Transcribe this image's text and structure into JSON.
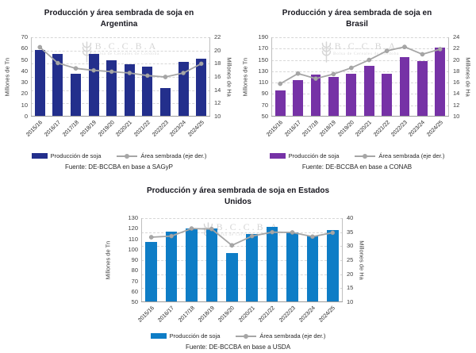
{
  "watermark": {
    "abbr": "B.C.C.B.A",
    "sub": "Bolsa de Cereales de Córdoba"
  },
  "line_color": "#A6A6A6",
  "chart_data": [
    {
      "id": "argentina",
      "type": "bar",
      "title": "Producción y área sembrada de soja en\nArgentina",
      "categories": [
        "2015/16",
        "2016/17",
        "2017/18",
        "2018/19",
        "2019/20",
        "2020/21",
        "2021/22",
        "2022/23",
        "2023/24",
        "2024/25"
      ],
      "series": [
        {
          "name": "Producción de soja",
          "type": "bar",
          "axis": "left",
          "color": "#232F8C",
          "values": [
            59,
            55,
            37.8,
            55.3,
            49.5,
            46.3,
            43.9,
            25,
            48.3,
            51
          ]
        },
        {
          "name": "Área sembrada (eje der.)",
          "type": "line",
          "axis": "right",
          "color": "#A6A6A6",
          "values": [
            20.5,
            18.1,
            17.3,
            17.0,
            16.8,
            16.6,
            16.2,
            16.0,
            16.6,
            18.0
          ]
        }
      ],
      "left_axis": {
        "title": "Millones de Tn",
        "min": 0,
        "max": 70,
        "step": 10
      },
      "right_axis": {
        "title": "Millones de Ha",
        "min": 10,
        "max": 22,
        "step": 2
      },
      "grid": "dashed horizontal (right-axis ticks)",
      "legend_position": "bottom",
      "source": "Fuente: DE-BCCBA en base a SAGyP"
    },
    {
      "id": "brasil",
      "type": "bar",
      "title": "Producción y área sembrada de soja en\nBrasil",
      "categories": [
        "2015/16",
        "2016/17",
        "2017/18",
        "2018/19",
        "2019/20",
        "2020/21",
        "2021/22",
        "2022/23",
        "2023/24",
        "2024/25"
      ],
      "series": [
        {
          "name": "Producción de soja",
          "type": "bar",
          "axis": "left",
          "color": "#7632A6",
          "values": [
            96,
            114,
            124,
            120.5,
            125.5,
            140,
            126,
            155,
            148,
            172
          ]
        },
        {
          "name": "Área sembrada (eje der.)",
          "type": "line",
          "axis": "right",
          "color": "#A6A6A6",
          "values": [
            15.8,
            17.6,
            16.7,
            17.5,
            18.6,
            20.0,
            21.6,
            22.3,
            21.0,
            21.9
          ]
        }
      ],
      "left_axis": {
        "title": "Millones de Tn",
        "min": 50,
        "max": 190,
        "step": 20
      },
      "right_axis": {
        "title": "Millones de Ha",
        "min": 10,
        "max": 24,
        "step": 2
      },
      "grid": "dashed horizontal (right-axis ticks)",
      "legend_position": "bottom",
      "source": "Fuente: DE-BCCBA en base a CONAB"
    },
    {
      "id": "us",
      "type": "bar",
      "title": "Producción y área sembrada de soja en Estados\nUnidos",
      "categories": [
        "2015/16",
        "2016/17",
        "2017/18",
        "2018/19",
        "2019/20",
        "2020/21",
        "2021/22",
        "2022/23",
        "2023/24",
        "2024/25"
      ],
      "series": [
        {
          "name": "Producción de soja",
          "type": "bar",
          "axis": "left",
          "color": "#0E7DC6",
          "values": [
            107.5,
            117,
            120,
            120.5,
            97,
            115,
            121.5,
            116.4,
            113.2,
            118.8
          ]
        },
        {
          "name": "Área sembrada (eje der.)",
          "type": "line",
          "axis": "right",
          "color": "#A6A6A6",
          "values": [
            33.2,
            33.6,
            36.3,
            36.1,
            30.3,
            33.6,
            35.0,
            34.9,
            33.4,
            34.8
          ]
        }
      ],
      "left_axis": {
        "title": "Millones de Tn",
        "min": 50,
        "max": 130,
        "step": 10
      },
      "right_axis": {
        "title": "Millones de Ha",
        "min": 10,
        "max": 40,
        "step": 5
      },
      "grid": "dashed horizontal (right-axis ticks)",
      "legend_position": "bottom",
      "source": "Fuente: DE-BCCBA en base a USDA"
    }
  ]
}
